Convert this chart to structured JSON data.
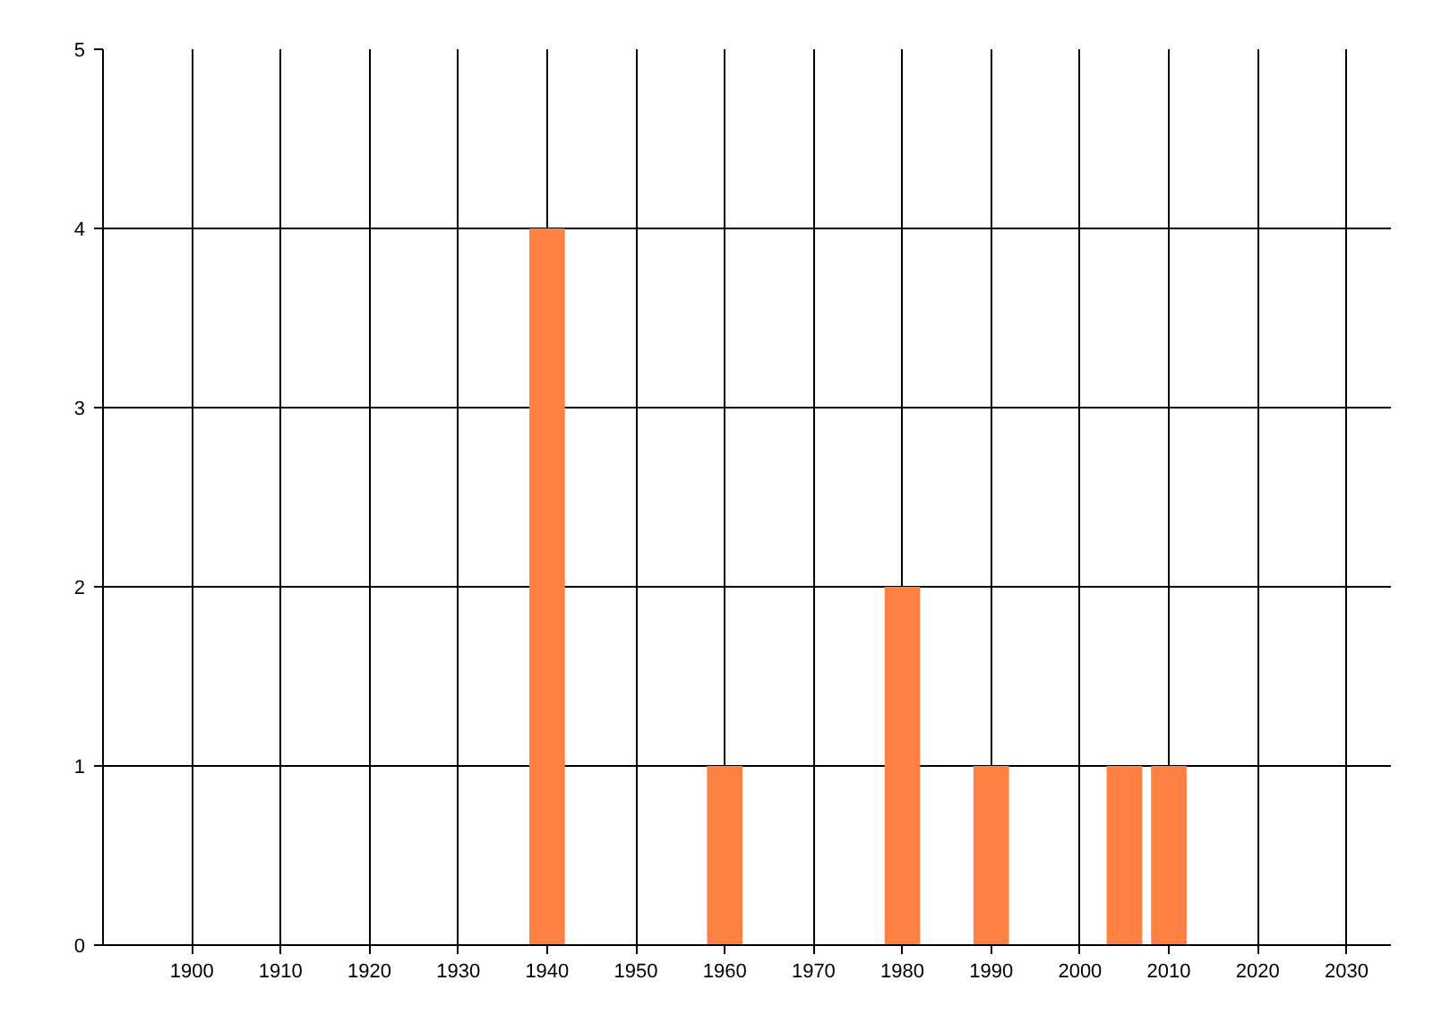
{
  "chart_data": {
    "type": "bar",
    "x": [
      1940,
      1960,
      1980,
      1990,
      2005,
      2010
    ],
    "values": [
      4,
      1,
      2,
      1,
      1,
      1
    ],
    "color": "#ff8040",
    "xlim": [
      1890,
      2035
    ],
    "xticks": [
      1900,
      1910,
      1920,
      1930,
      1940,
      1950,
      1960,
      1970,
      1980,
      1990,
      2000,
      2010,
      2020,
      2030
    ],
    "ylim": [
      0,
      5
    ],
    "yticks": [
      0,
      1,
      2,
      3,
      4,
      5
    ],
    "grid": true
  }
}
